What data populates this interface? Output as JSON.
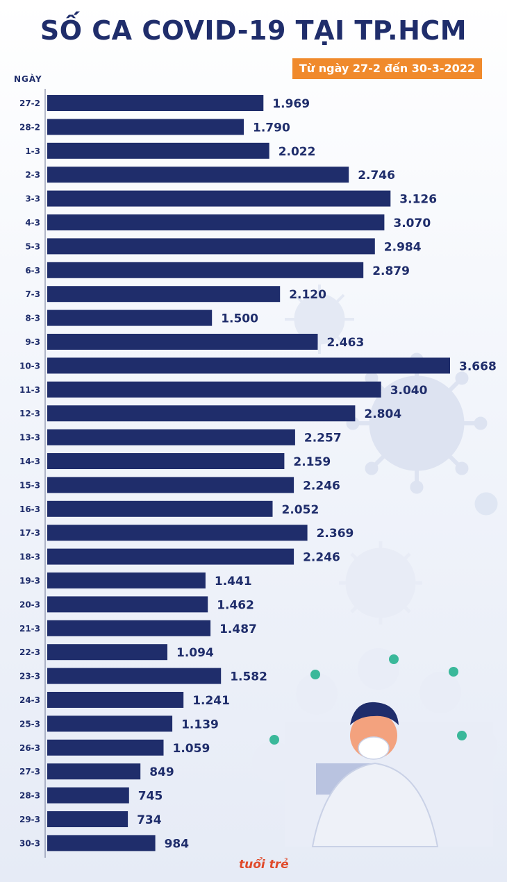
{
  "title": "SỐ CA COVID-19 TẠI TP.HCM",
  "subtitle": "Từ ngày 27-2 đến 30-3-2022",
  "logo_text": "tuổi trẻ",
  "colors": {
    "bar": "#1f2d6b",
    "title": "#1f2d6b",
    "subtitle_bg": "#f08a2c",
    "logo": "#e04a2a"
  },
  "chart_data": {
    "type": "bar",
    "orientation": "horizontal",
    "ylabel": "NGÀY",
    "categories": [
      "27-2",
      "28-2",
      "1-3",
      "2-3",
      "3-3",
      "4-3",
      "5-3",
      "6-3",
      "7-3",
      "8-3",
      "9-3",
      "10-3",
      "11-3",
      "12-3",
      "13-3",
      "14-3",
      "15-3",
      "16-3",
      "17-3",
      "18-3",
      "19-3",
      "20-3",
      "21-3",
      "22-3",
      "23-3",
      "24-3",
      "25-3",
      "26-3",
      "27-3",
      "28-3",
      "29-3",
      "30-3"
    ],
    "values": [
      1969,
      1790,
      2022,
      2746,
      3126,
      3070,
      2984,
      2879,
      2120,
      1500,
      2463,
      3668,
      3040,
      2804,
      2257,
      2159,
      2246,
      2052,
      2369,
      2246,
      1441,
      1462,
      1487,
      1094,
      1582,
      1241,
      1139,
      1059,
      849,
      745,
      734,
      984
    ],
    "value_labels": [
      "1.969",
      "1.790",
      "2.022",
      "2.746",
      "3.126",
      "3.070",
      "2.984",
      "2.879",
      "2.120",
      "1.500",
      "2.463",
      "3.668",
      "3.040",
      "2.804",
      "2.257",
      "2.159",
      "2.246",
      "2.052",
      "2.369",
      "2.246",
      "1.441",
      "1.462",
      "1.487",
      "1.094",
      "1.582",
      "1.241",
      "1.139",
      "1.059",
      "849",
      "745",
      "734",
      "984"
    ],
    "xlim": [
      0,
      3668
    ],
    "grid": false,
    "legend": "none"
  }
}
